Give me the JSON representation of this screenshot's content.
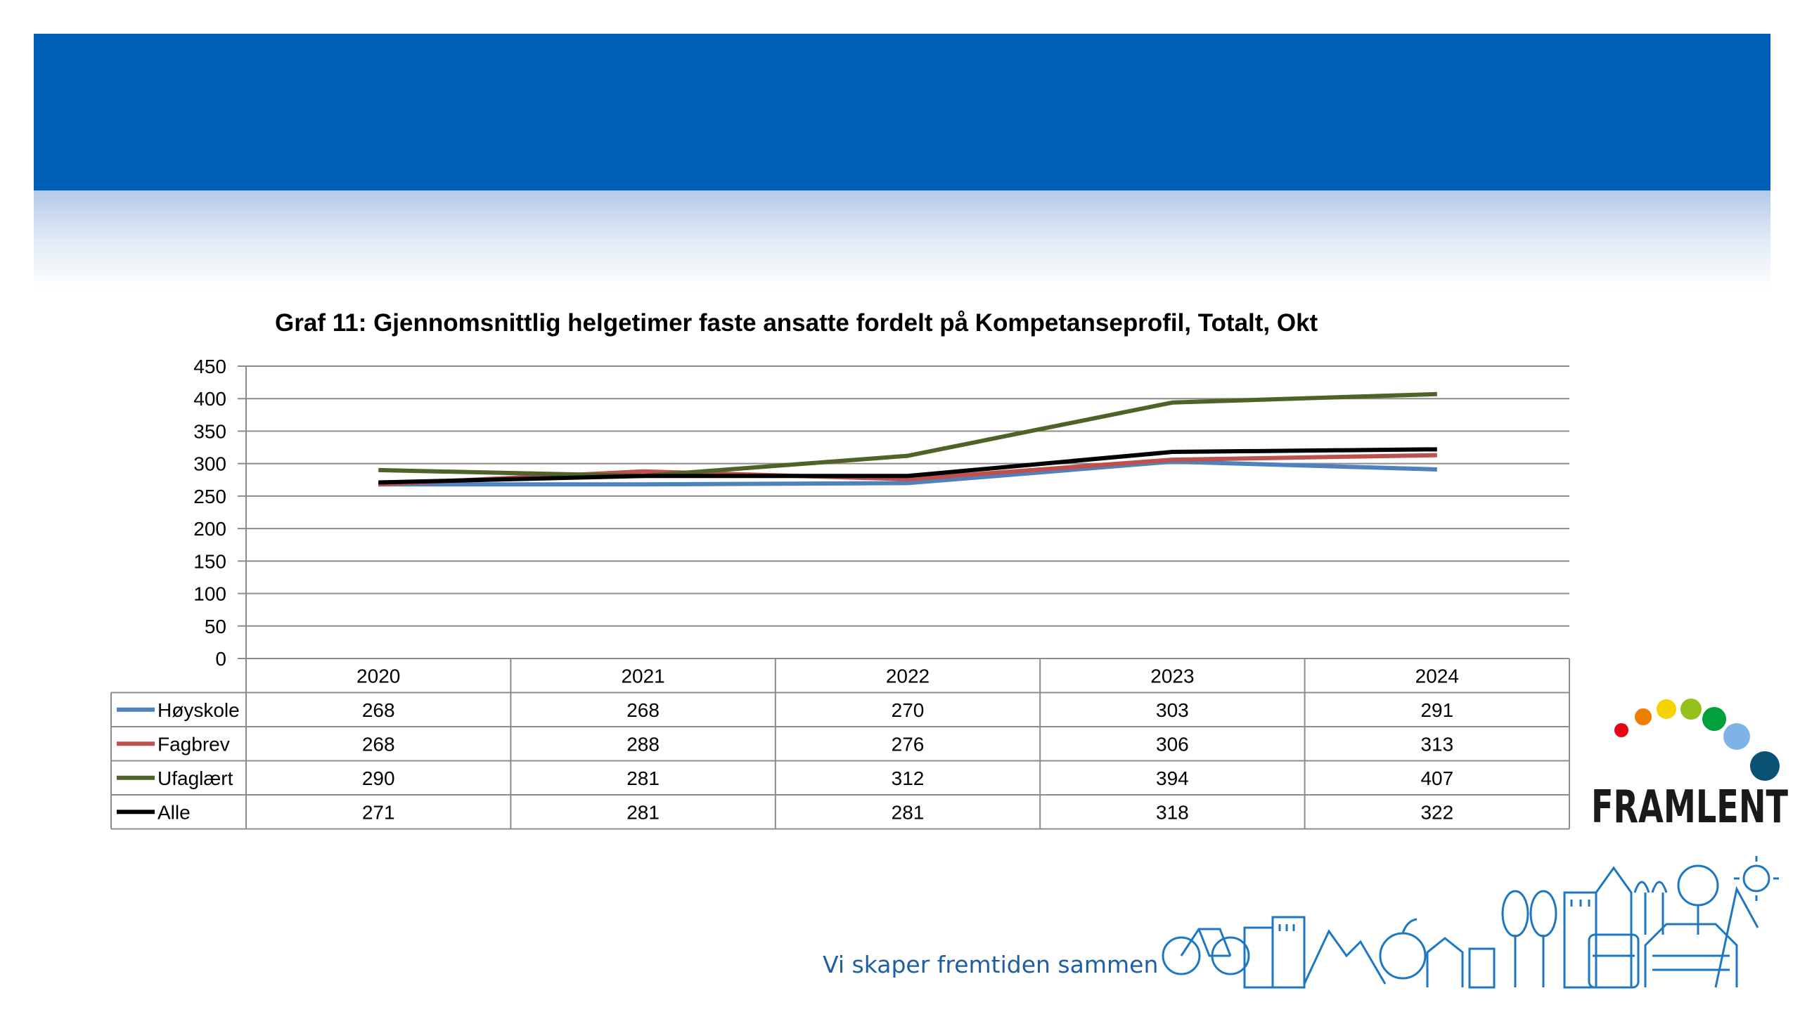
{
  "header": {
    "color": "#005eb8"
  },
  "chart_data": {
    "type": "line",
    "title": "Graf 11: Gjennomsnittlig helgetimer faste ansatte fordelt på Kompetanseprofil, Totalt, Okt",
    "categories": [
      "2020",
      "2021",
      "2022",
      "2023",
      "2024"
    ],
    "ylim": [
      0,
      450
    ],
    "yticks": [
      "0",
      "50",
      "100",
      "150",
      "200",
      "250",
      "300",
      "350",
      "400",
      "450"
    ],
    "grid": true,
    "data_table": true,
    "series": [
      {
        "name": "Høyskole",
        "color": "#4f81bd",
        "values": [
          268,
          268,
          270,
          303,
          291
        ]
      },
      {
        "name": "Fagbrev",
        "color": "#c0504d",
        "values": [
          268,
          288,
          276,
          306,
          313
        ]
      },
      {
        "name": "Ufaglært",
        "color": "#4f6228",
        "values": [
          290,
          281,
          312,
          394,
          407
        ]
      },
      {
        "name": "Alle",
        "color": "#000000",
        "values": [
          271,
          281,
          281,
          318,
          322
        ]
      }
    ]
  },
  "footer": {
    "tagline": "Vi skaper fremtiden sammen",
    "logo_text": "FRAMLENT",
    "logo_dot_colors": [
      "#e30613",
      "#ef7d00",
      "#f6d300",
      "#95c11f",
      "#00a03c",
      "#7fb2e5",
      "#0a5273"
    ]
  }
}
